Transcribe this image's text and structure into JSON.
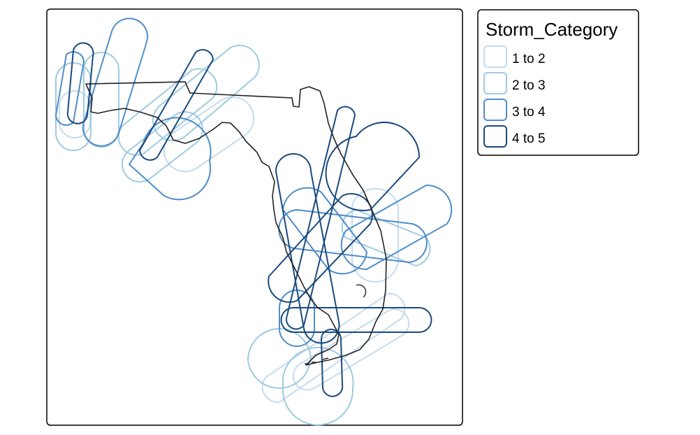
{
  "legend": {
    "title": "Storm_Category",
    "entries": [
      {
        "label": "1 to 2",
        "color": "#c6dbef"
      },
      {
        "label": "2 to 3",
        "color": "#9ecae1"
      },
      {
        "label": "3 to 4",
        "color": "#4f8dc8"
      },
      {
        "label": "4 to 5",
        "color": "#1a4a7e"
      }
    ]
  },
  "map": {
    "outline_color": "#222222",
    "frame_color": "#000000",
    "background": "#ffffff"
  }
}
